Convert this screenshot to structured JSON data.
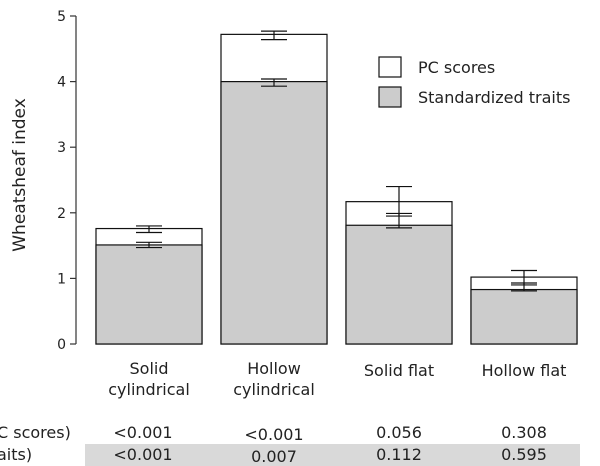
{
  "chart_data": {
    "type": "bar",
    "stacked_overlay": true,
    "ylabel": "Wheatsheaf index",
    "ylim": [
      0,
      5
    ],
    "yticks": [
      0,
      1,
      2,
      3,
      4,
      5
    ],
    "grid": false,
    "legend_position": "top-right",
    "categories": [
      [
        "Solid",
        "cylindrical"
      ],
      [
        "Hollow",
        "cylindrical"
      ],
      [
        "Solid flat"
      ],
      [
        "Hollow flat"
      ]
    ],
    "series": [
      {
        "name": "PC scores",
        "color": "#ffffff",
        "values": [
          1.76,
          4.72,
          2.17,
          1.02
        ],
        "err_low": [
          1.7,
          4.64,
          1.95,
          0.9
        ],
        "err_high": [
          1.8,
          4.77,
          2.4,
          1.12
        ]
      },
      {
        "name": "Standardized traits",
        "color": "#cccccc",
        "values": [
          1.51,
          4.0,
          1.81,
          0.83
        ],
        "err_low": [
          1.47,
          3.93,
          1.77,
          0.81
        ],
        "err_high": [
          1.55,
          4.04,
          1.99,
          0.93
        ]
      }
    ],
    "table": {
      "rows": [
        {
          "label": "C scores)",
          "values": [
            "<0.001",
            "<0.001",
            "0.056",
            "0.308"
          ],
          "shaded": false
        },
        {
          "label": "aits)",
          "values": [
            "<0.001",
            "0.007",
            "0.112",
            "0.595"
          ],
          "shaded": true
        }
      ],
      "shade_color": "#d9d9d9"
    }
  }
}
